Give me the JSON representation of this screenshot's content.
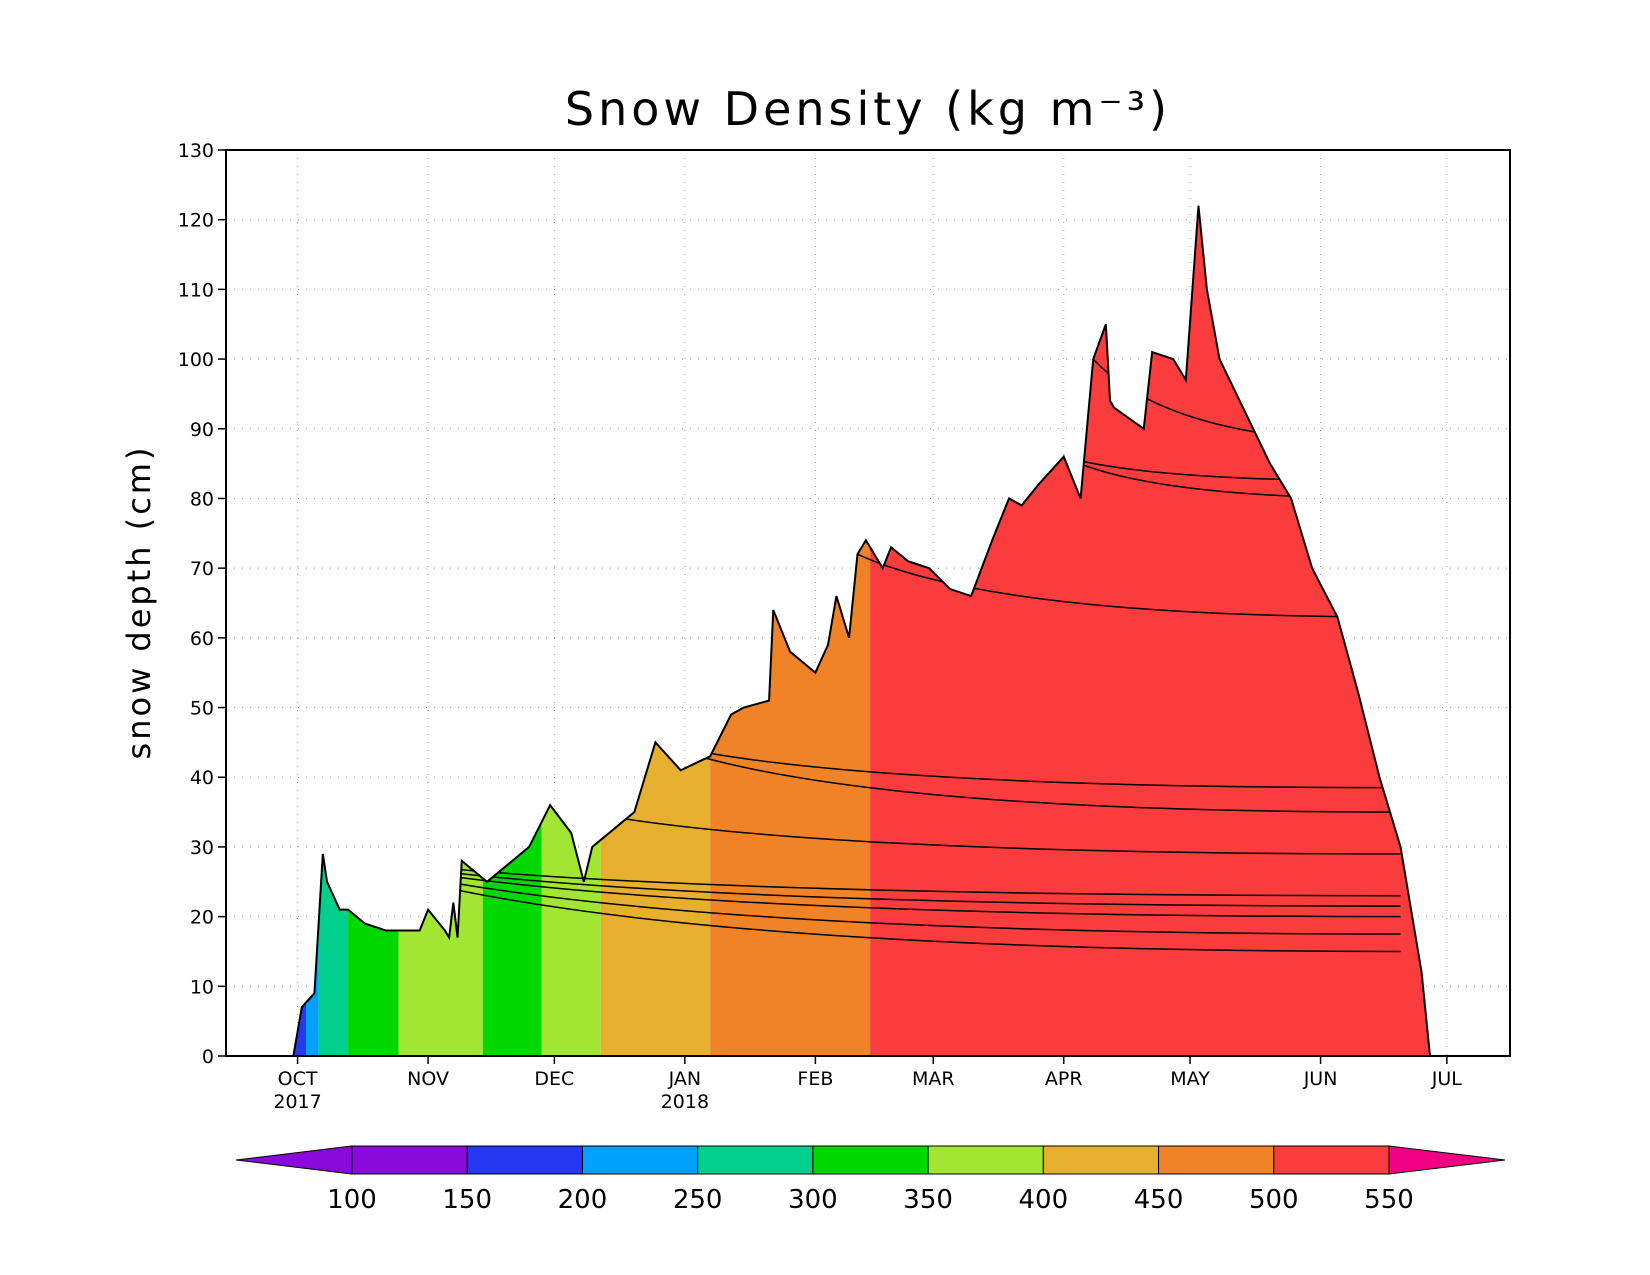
{
  "chart_data": {
    "type": "area",
    "title": "Snow Density (kg m⁻³)",
    "ylabel": "snow depth (cm)",
    "xlabel": "",
    "ylim": [
      0,
      130
    ],
    "yticks": [
      0,
      10,
      20,
      30,
      40,
      50,
      60,
      70,
      80,
      90,
      100,
      110,
      120,
      130
    ],
    "xlim": [
      "2017-09-14",
      "2018-07-16"
    ],
    "xticks": [
      {
        "date": "2017-10-01",
        "label": "OCT",
        "sublabel": "2017"
      },
      {
        "date": "2017-11-01",
        "label": "NOV",
        "sublabel": ""
      },
      {
        "date": "2017-12-01",
        "label": "DEC",
        "sublabel": ""
      },
      {
        "date": "2018-01-01",
        "label": "JAN",
        "sublabel": "2018"
      },
      {
        "date": "2018-02-01",
        "label": "FEB",
        "sublabel": ""
      },
      {
        "date": "2018-03-01",
        "label": "MAR",
        "sublabel": ""
      },
      {
        "date": "2018-04-01",
        "label": "APR",
        "sublabel": ""
      },
      {
        "date": "2018-05-01",
        "label": "MAY",
        "sublabel": ""
      },
      {
        "date": "2018-06-01",
        "label": "JUN",
        "sublabel": ""
      },
      {
        "date": "2018-07-01",
        "label": "JUL",
        "sublabel": ""
      }
    ],
    "grid": true,
    "colorbar": {
      "label": "Snow Density (kg m⁻³)",
      "levels": [
        100,
        150,
        200,
        250,
        300,
        350,
        400,
        450,
        500,
        550
      ],
      "colors": [
        "#8a0adc",
        "#8a0adc",
        "#2438f2",
        "#00a0ff",
        "#00d08c",
        "#00d800",
        "#a0e632",
        "#e6af2d",
        "#f08228",
        "#fa3c3c",
        "#f00082"
      ]
    },
    "depth_series": {
      "name": "snow depth",
      "x": [
        "2017-09-30",
        "2017-10-02",
        "2017-10-05",
        "2017-10-07",
        "2017-10-08",
        "2017-10-11",
        "2017-10-13",
        "2017-10-17",
        "2017-10-22",
        "2017-10-30",
        "2017-11-01",
        "2017-11-05",
        "2017-11-06",
        "2017-11-07",
        "2017-11-08",
        "2017-11-09",
        "2017-11-15",
        "2017-11-25",
        "2017-11-30",
        "2017-12-05",
        "2017-12-08",
        "2017-12-10",
        "2017-12-20",
        "2017-12-25",
        "2017-12-31",
        "2018-01-07",
        "2018-01-12",
        "2018-01-15",
        "2018-01-21",
        "2018-01-22",
        "2018-01-26",
        "2018-02-01",
        "2018-02-04",
        "2018-02-06",
        "2018-02-09",
        "2018-02-11",
        "2018-02-13",
        "2018-02-17",
        "2018-02-19",
        "2018-02-23",
        "2018-02-28",
        "2018-03-05",
        "2018-03-10",
        "2018-03-15",
        "2018-03-19",
        "2018-03-22",
        "2018-03-26",
        "2018-04-01",
        "2018-04-05",
        "2018-04-08",
        "2018-04-11",
        "2018-04-12",
        "2018-04-13",
        "2018-04-20",
        "2018-04-22",
        "2018-04-27",
        "2018-04-30",
        "2018-05-03",
        "2018-05-05",
        "2018-05-08",
        "2018-05-12",
        "2018-05-16",
        "2018-05-20",
        "2018-05-25",
        "2018-05-30",
        "2018-06-05",
        "2018-06-10",
        "2018-06-15",
        "2018-06-20",
        "2018-06-25",
        "2018-06-27"
      ],
      "y": [
        0,
        7,
        9,
        29,
        25,
        21,
        21,
        19,
        18,
        18,
        21,
        18,
        17,
        22,
        17,
        28,
        25,
        30,
        36,
        32,
        25,
        30,
        35,
        45,
        41,
        43,
        49,
        50,
        51,
        64,
        58,
        55,
        59,
        66,
        60,
        72,
        74,
        70,
        73,
        71,
        70,
        67,
        66,
        74,
        80,
        79,
        82,
        86,
        80,
        100,
        105,
        94,
        93,
        90,
        101,
        100,
        97,
        122,
        110,
        100,
        95,
        90,
        85,
        80,
        70,
        63,
        52,
        40,
        30,
        12,
        0
      ]
    },
    "layer_boundaries_end_depth_cm": [
      15,
      17.5,
      20,
      21.5,
      23,
      29,
      35,
      38.5,
      63,
      80,
      82.5,
      88
    ],
    "density_bands": [
      {
        "from": "2017-09-30",
        "to": "2017-10-03",
        "density": 175
      },
      {
        "from": "2017-10-03",
        "to": "2017-10-06",
        "density": 225
      },
      {
        "from": "2017-10-06",
        "to": "2017-10-13",
        "density": 275
      },
      {
        "from": "2017-10-13",
        "to": "2017-10-25",
        "density": 325
      },
      {
        "from": "2017-10-25",
        "to": "2017-11-14",
        "density": 375
      },
      {
        "from": "2017-11-14",
        "to": "2017-11-28",
        "density": 325
      },
      {
        "from": "2017-11-28",
        "to": "2017-12-12",
        "density": 375
      },
      {
        "from": "2017-12-12",
        "to": "2018-01-07",
        "density": 425
      },
      {
        "from": "2018-01-07",
        "to": "2018-02-14",
        "density": 475
      },
      {
        "from": "2018-02-14",
        "to": "2018-06-27",
        "density": 525
      }
    ]
  }
}
